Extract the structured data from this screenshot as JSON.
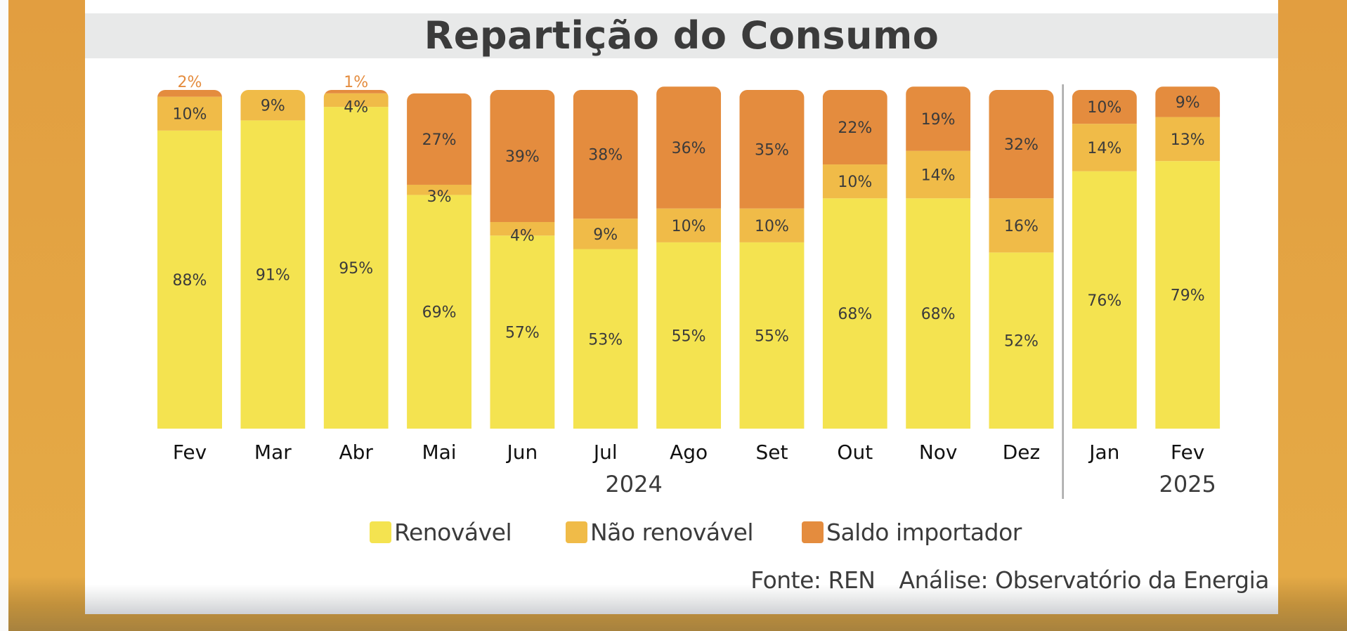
{
  "chart_data": {
    "type": "bar",
    "stacked": true,
    "title": "Repartição do Consumo",
    "xlabel": "",
    "ylabel": "",
    "ylim": [
      0,
      100
    ],
    "grid": false,
    "legend_position": "bottom",
    "categories": [
      "Fev",
      "Mar",
      "Abr",
      "Mai",
      "Jun",
      "Jul",
      "Ago",
      "Set",
      "Out",
      "Nov",
      "Dez",
      "Jan",
      "Fev"
    ],
    "year_groups": [
      {
        "label": "2024",
        "start_index": 0,
        "end_index": 10
      },
      {
        "label": "2025",
        "start_index": 11,
        "end_index": 12
      }
    ],
    "series": [
      {
        "name": "Renovável",
        "color": "#f4e350",
        "values": [
          88,
          91,
          95,
          69,
          57,
          53,
          55,
          55,
          68,
          68,
          52,
          76,
          79
        ]
      },
      {
        "name": "Não renovável",
        "color": "#f0bb48",
        "values": [
          10,
          9,
          4,
          3,
          4,
          9,
          10,
          10,
          10,
          14,
          16,
          14,
          13
        ]
      },
      {
        "name": "Saldo importador",
        "color": "#e48c3e",
        "values": [
          2,
          0,
          1,
          27,
          39,
          38,
          36,
          35,
          22,
          19,
          32,
          10,
          9
        ]
      }
    ],
    "label_color_outside": "#e48c3e",
    "label_color_inside": "#3b3b3b"
  },
  "legend": {
    "items": [
      {
        "label": "Renovável",
        "color": "#f4e350"
      },
      {
        "label": "Não renovável",
        "color": "#f0bb48"
      },
      {
        "label": "Saldo importador",
        "color": "#e48c3e"
      }
    ]
  },
  "footer": {
    "source": "Fonte: REN",
    "analysis": "Análise: Observatório da Energia"
  }
}
